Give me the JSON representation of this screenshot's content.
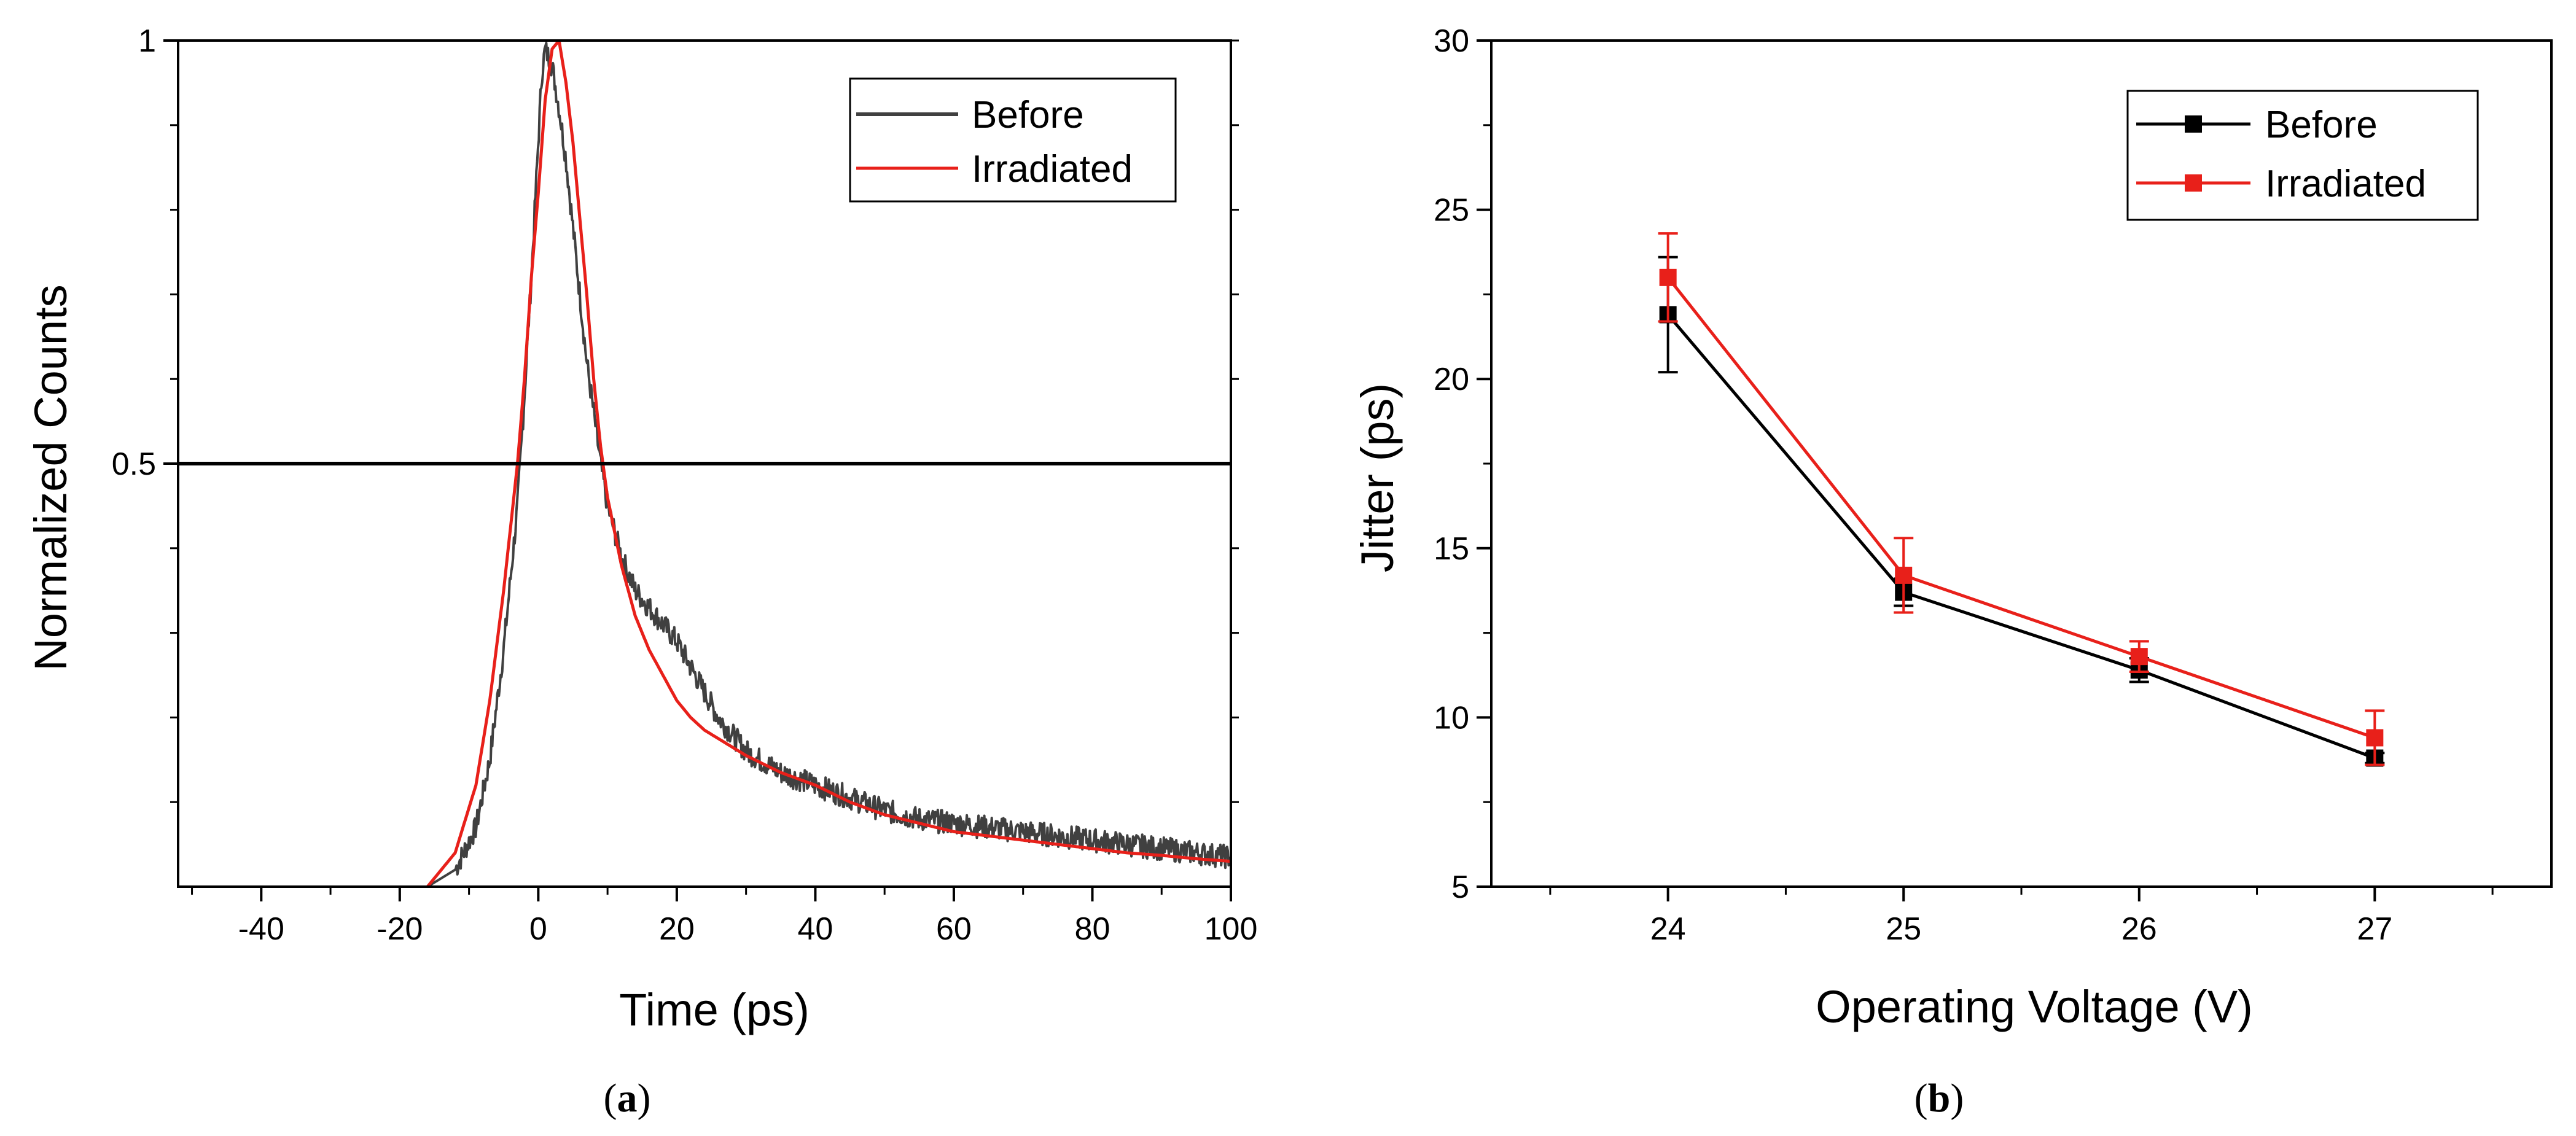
{
  "chart_data": [
    {
      "type": "line",
      "panel": "a",
      "caption": "(a)",
      "caption_letter": "a",
      "caption_open": "(",
      "caption_close": ")",
      "xlabel": "Time (ps)",
      "ylabel": "Normalized Counts",
      "xlim": [
        -52,
        100
      ],
      "ylim": [
        0,
        1
      ],
      "xticks": [
        -40,
        -20,
        0,
        20,
        40,
        60,
        80,
        100
      ],
      "yticks": [
        0.5,
        1
      ],
      "ytick_labels": [
        "0.5",
        "1"
      ],
      "reference_line_y": 0.5,
      "legend_position": "top-right",
      "series": [
        {
          "name": "Before",
          "color": "#404040",
          "noisy": true,
          "x": [
            -16,
            -12,
            -9,
            -7,
            -5,
            -3,
            -2,
            -1,
            0,
            0.5,
            1,
            2,
            3,
            4,
            5,
            6,
            7,
            8,
            9,
            10,
            12,
            14,
            16,
            18,
            20,
            22,
            24,
            26,
            28,
            30,
            35,
            40,
            45,
            50,
            55,
            60,
            65,
            70,
            75,
            80,
            85,
            90,
            95,
            100
          ],
          "y": [
            0.0,
            0.02,
            0.07,
            0.15,
            0.28,
            0.45,
            0.58,
            0.72,
            0.88,
            0.96,
            0.99,
            0.97,
            0.92,
            0.86,
            0.78,
            0.7,
            0.62,
            0.56,
            0.5,
            0.45,
            0.39,
            0.35,
            0.33,
            0.31,
            0.29,
            0.26,
            0.23,
            0.2,
            0.18,
            0.16,
            0.135,
            0.12,
            0.105,
            0.09,
            0.08,
            0.075,
            0.07,
            0.065,
            0.06,
            0.055,
            0.05,
            0.045,
            0.04,
            0.035
          ]
        },
        {
          "name": "Irradiated",
          "color": "#e8201a",
          "noisy": false,
          "x": [
            -16,
            -12,
            -9,
            -7,
            -5,
            -3,
            -2,
            -1,
            0,
            1,
            2,
            3,
            4,
            5,
            6,
            7,
            8,
            9,
            10,
            12,
            14,
            16,
            18,
            20,
            22,
            24,
            26,
            28,
            30,
            35,
            40,
            45,
            50,
            55,
            60,
            65,
            70,
            75,
            80,
            85,
            90,
            95,
            100
          ],
          "y": [
            0.0,
            0.04,
            0.12,
            0.22,
            0.35,
            0.5,
            0.6,
            0.72,
            0.82,
            0.93,
            0.99,
            1.0,
            0.95,
            0.88,
            0.79,
            0.7,
            0.6,
            0.52,
            0.46,
            0.38,
            0.32,
            0.28,
            0.25,
            0.22,
            0.2,
            0.185,
            0.175,
            0.165,
            0.155,
            0.135,
            0.12,
            0.1,
            0.085,
            0.075,
            0.065,
            0.06,
            0.055,
            0.05,
            0.045,
            0.04,
            0.037,
            0.033,
            0.03
          ]
        }
      ]
    },
    {
      "type": "line",
      "panel": "b",
      "caption": "(b)",
      "caption_letter": "b",
      "caption_open": "(",
      "caption_close": ")",
      "xlabel": "Operating Voltage (V)",
      "ylabel": "Jitter (ps)",
      "xlim": [
        23.25,
        27.75
      ],
      "ylim": [
        5,
        30
      ],
      "xticks": [
        24,
        25,
        26,
        27
      ],
      "yticks": [
        5,
        10,
        15,
        20,
        25,
        30
      ],
      "legend_position": "top-right",
      "series": [
        {
          "name": "Before",
          "color": "#000000",
          "x": [
            24,
            25,
            26,
            27
          ],
          "y": [
            21.9,
            13.7,
            11.4,
            8.8
          ],
          "yerr": [
            1.7,
            0.4,
            0.35,
            0.15
          ]
        },
        {
          "name": "Irradiated",
          "color": "#e8201a",
          "x": [
            24,
            25,
            26,
            27
          ],
          "y": [
            23.0,
            14.2,
            11.8,
            9.4
          ],
          "yerr": [
            1.3,
            1.1,
            0.45,
            0.8
          ]
        }
      ]
    }
  ]
}
